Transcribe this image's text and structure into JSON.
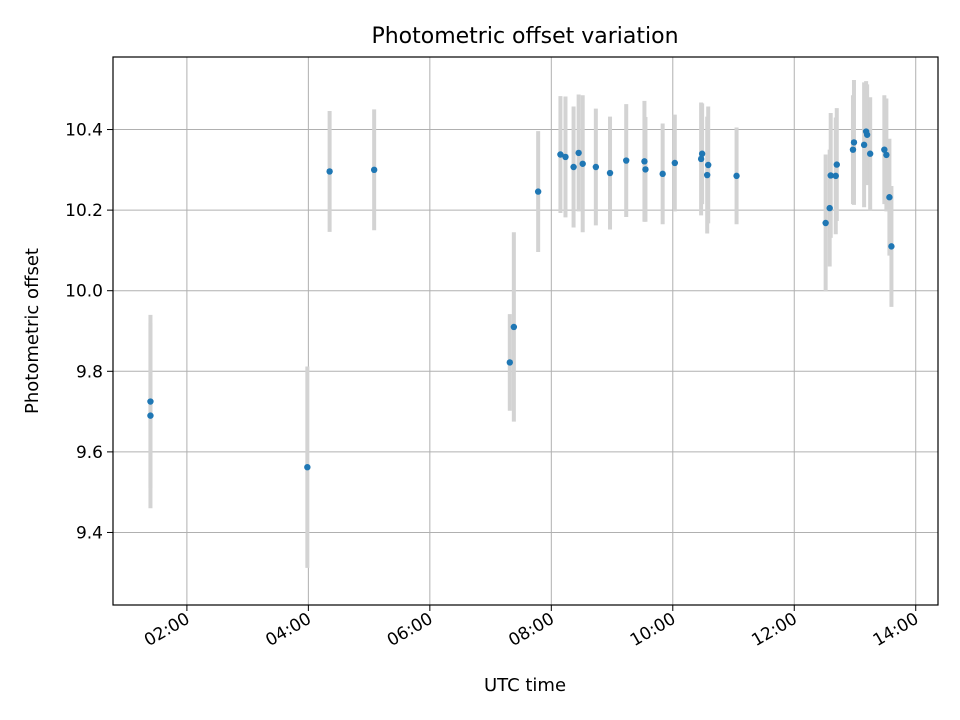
{
  "chart_data": {
    "type": "scatter",
    "title": "Photometric offset variation",
    "xlabel": "UTC time",
    "ylabel": "Photometric offset",
    "xlim": [
      "00:47",
      "14:22"
    ],
    "ylim": [
      9.22,
      10.58
    ],
    "x_ticks": [
      "02:00",
      "04:00",
      "06:00",
      "08:00",
      "10:00",
      "12:00",
      "14:00"
    ],
    "y_ticks": [
      9.4,
      9.6,
      9.8,
      10.0,
      10.2,
      10.4
    ],
    "y_tick_labels": [
      "9.4",
      "9.6",
      "9.8",
      "10.0",
      "10.2",
      "10.4"
    ],
    "grid": true,
    "colors": {
      "point": "#1f77b4",
      "errorbar": "#d3d3d3"
    },
    "series": [
      {
        "points": [
          {
            "x": "01:24",
            "y": 9.725,
            "err": 0.215
          },
          {
            "x": "01:24",
            "y": 9.69,
            "err": 0.23
          },
          {
            "x": "03:59",
            "y": 9.562,
            "err": 0.25
          },
          {
            "x": "04:21",
            "y": 10.296,
            "err": 0.15
          },
          {
            "x": "05:05",
            "y": 10.3,
            "err": 0.15
          },
          {
            "x": "07:19",
            "y": 9.822,
            "err": 0.12
          },
          {
            "x": "07:23",
            "y": 9.91,
            "err": 0.235
          },
          {
            "x": "07:47",
            "y": 10.246,
            "err": 0.15
          },
          {
            "x": "08:09",
            "y": 10.338,
            "err": 0.145
          },
          {
            "x": "08:14",
            "y": 10.332,
            "err": 0.15
          },
          {
            "x": "08:22",
            "y": 10.307,
            "err": 0.15
          },
          {
            "x": "08:27",
            "y": 10.342,
            "err": 0.145
          },
          {
            "x": "08:31",
            "y": 10.315,
            "err": 0.17
          },
          {
            "x": "08:44",
            "y": 10.307,
            "err": 0.145
          },
          {
            "x": "08:58",
            "y": 10.292,
            "err": 0.14
          },
          {
            "x": "09:14",
            "y": 10.323,
            "err": 0.14
          },
          {
            "x": "09:32",
            "y": 10.321,
            "err": 0.15
          },
          {
            "x": "09:33",
            "y": 10.301,
            "err": 0.13
          },
          {
            "x": "09:50",
            "y": 10.29,
            "err": 0.125
          },
          {
            "x": "10:02",
            "y": 10.317,
            "err": 0.12
          },
          {
            "x": "10:28",
            "y": 10.327,
            "err": 0.14
          },
          {
            "x": "10:29",
            "y": 10.34,
            "err": 0.125
          },
          {
            "x": "10:34",
            "y": 10.287,
            "err": 0.145
          },
          {
            "x": "10:35",
            "y": 10.312,
            "err": 0.145
          },
          {
            "x": "11:03",
            "y": 10.285,
            "err": 0.12
          },
          {
            "x": "12:31",
            "y": 10.168,
            "err": 0.17
          },
          {
            "x": "12:35",
            "y": 10.205,
            "err": 0.145
          },
          {
            "x": "12:36",
            "y": 10.286,
            "err": 0.155
          },
          {
            "x": "12:41",
            "y": 10.285,
            "err": 0.145
          },
          {
            "x": "12:42",
            "y": 10.313,
            "err": 0.14
          },
          {
            "x": "12:58",
            "y": 10.35,
            "err": 0.135
          },
          {
            "x": "12:59",
            "y": 10.368,
            "err": 0.155
          },
          {
            "x": "13:09",
            "y": 10.362,
            "err": 0.155
          },
          {
            "x": "13:11",
            "y": 10.395,
            "err": 0.125
          },
          {
            "x": "13:12",
            "y": 10.387,
            "err": 0.125
          },
          {
            "x": "13:15",
            "y": 10.34,
            "err": 0.14
          },
          {
            "x": "13:29",
            "y": 10.35,
            "err": 0.135
          },
          {
            "x": "13:31",
            "y": 10.337,
            "err": 0.14
          },
          {
            "x": "13:34",
            "y": 10.232,
            "err": 0.145
          },
          {
            "x": "13:36",
            "y": 10.11,
            "err": 0.15
          }
        ]
      }
    ]
  }
}
